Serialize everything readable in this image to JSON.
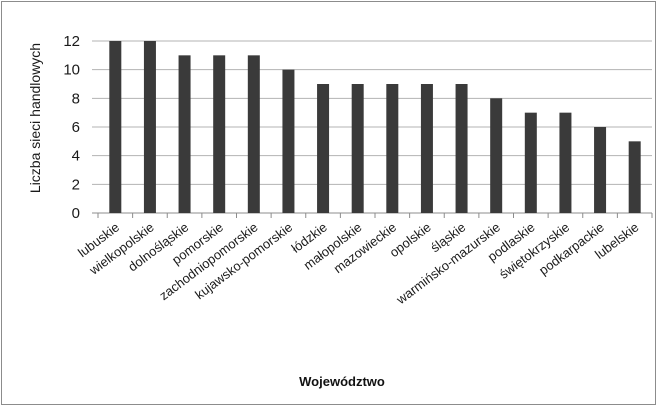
{
  "chart_data": {
    "type": "bar",
    "title": "",
    "xlabel": "Województwo",
    "ylabel": "Liczba sieci handlowych",
    "ylim": [
      0,
      12
    ],
    "yticks": [
      0,
      2,
      4,
      6,
      8,
      10,
      12
    ],
    "grid": true,
    "legend": "none",
    "bar_color": "#3a3a3a",
    "grid_color": "#b3b3b3",
    "categories": [
      "lubuskie",
      "wielkopolskie",
      "dolnośląskie",
      "pomorskie",
      "zachodniopomorskie",
      "kujawsko-pomorskie",
      "łódzkie",
      "małopolskie",
      "mazowieckie",
      "opolskie",
      "śląskie",
      "warmińsko-mazurskie",
      "podlaskie",
      "świętokrzyskie",
      "podkarpackie",
      "lubelskie"
    ],
    "values": [
      12,
      12,
      11,
      11,
      11,
      10,
      9,
      9,
      9,
      9,
      9,
      8,
      7,
      7,
      6,
      5
    ]
  }
}
